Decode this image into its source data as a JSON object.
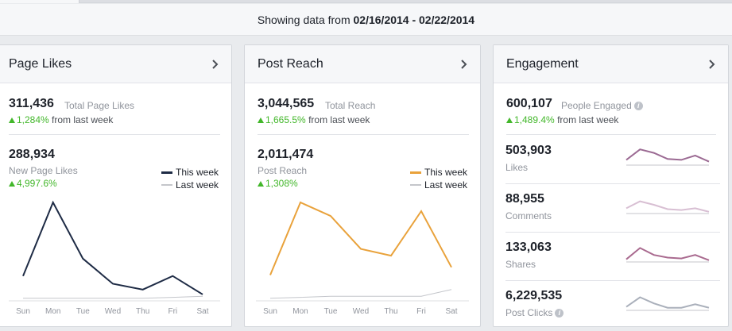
{
  "header": {
    "prefix": "Showing data from ",
    "range": "02/16/2014 - 02/22/2014"
  },
  "cards": {
    "likes": {
      "title": "Page Likes",
      "total_value": "311,436",
      "total_label": "Total Page Likes",
      "total_change": "1,284%",
      "total_change_suffix": "from last week",
      "sub_value": "288,934",
      "sub_label": "New Page Likes",
      "sub_change": "4,997.6%",
      "legend_this": "This week",
      "legend_last": "Last week"
    },
    "reach": {
      "title": "Post Reach",
      "total_value": "3,044,565",
      "total_label": "Total Reach",
      "total_change": "1,665.5%",
      "total_change_suffix": "from last week",
      "sub_value": "2,011,474",
      "sub_label": "Post Reach",
      "sub_change": "1,308%",
      "legend_this": "This week",
      "legend_last": "Last week"
    },
    "engagement": {
      "title": "Engagement",
      "total_value": "600,107",
      "total_label": "People Engaged",
      "total_change": "1,489.4%",
      "total_change_suffix": "from last week",
      "rows": [
        {
          "value": "503,903",
          "label": "Likes"
        },
        {
          "value": "88,955",
          "label": "Comments"
        },
        {
          "value": "133,063",
          "label": "Shares"
        },
        {
          "value": "6,229,535",
          "label": "Post Clicks"
        }
      ]
    }
  },
  "colors": {
    "likes_line": "#1e2b45",
    "reach_line": "#e9a23b",
    "last_week": "#c4c6cb",
    "spark_likes": "#9b6a93",
    "spark_comments": "#d8bfd3",
    "spark_shares": "#a96a8f",
    "spark_clicks": "#aab0bb"
  },
  "chart_data": [
    {
      "type": "line",
      "title": "Page Likes",
      "categories": [
        "Sun",
        "Mon",
        "Tue",
        "Wed",
        "Thu",
        "Fri",
        "Sat"
      ],
      "series": [
        {
          "name": "This week",
          "values": [
            24,
            100,
            42,
            16,
            10,
            24,
            5
          ]
        },
        {
          "name": "Last week",
          "values": [
            1,
            1,
            1,
            1,
            1,
            2,
            3
          ]
        }
      ],
      "ylim": [
        0,
        100
      ],
      "grid": false
    },
    {
      "type": "line",
      "title": "Post Reach",
      "categories": [
        "Sun",
        "Mon",
        "Tue",
        "Wed",
        "Thu",
        "Fri",
        "Sat"
      ],
      "series": [
        {
          "name": "This week",
          "values": [
            25,
            100,
            86,
            52,
            45,
            91,
            33
          ]
        },
        {
          "name": "Last week",
          "values": [
            1,
            2,
            3,
            3,
            3,
            3,
            10
          ]
        }
      ],
      "ylim": [
        0,
        100
      ],
      "grid": false
    },
    {
      "type": "line",
      "title": "Likes",
      "categories": [
        "Sun",
        "Mon",
        "Tue",
        "Wed",
        "Thu",
        "Fri",
        "Sat"
      ],
      "series": [
        {
          "name": "This week",
          "values": [
            30,
            90,
            70,
            35,
            30,
            55,
            20
          ]
        },
        {
          "name": "Last week",
          "values": [
            0,
            0,
            0,
            0,
            0,
            0,
            0
          ]
        }
      ]
    },
    {
      "type": "line",
      "title": "Comments",
      "categories": [
        "Sun",
        "Mon",
        "Tue",
        "Wed",
        "Thu",
        "Fri",
        "Sat"
      ],
      "series": [
        {
          "name": "This week",
          "values": [
            30,
            70,
            50,
            25,
            20,
            30,
            10
          ]
        },
        {
          "name": "Last week",
          "values": [
            0,
            0,
            0,
            0,
            0,
            0,
            0
          ]
        }
      ]
    },
    {
      "type": "line",
      "title": "Shares",
      "categories": [
        "Sun",
        "Mon",
        "Tue",
        "Wed",
        "Thu",
        "Fri",
        "Sat"
      ],
      "series": [
        {
          "name": "This week",
          "values": [
            15,
            80,
            40,
            25,
            20,
            40,
            10
          ]
        },
        {
          "name": "Last week",
          "values": [
            0,
            0,
            0,
            0,
            0,
            0,
            0
          ]
        }
      ]
    },
    {
      "type": "line",
      "title": "Post Clicks",
      "categories": [
        "Sun",
        "Mon",
        "Tue",
        "Wed",
        "Thu",
        "Fri",
        "Sat"
      ],
      "series": [
        {
          "name": "This week",
          "values": [
            20,
            75,
            40,
            15,
            15,
            35,
            15
          ]
        },
        {
          "name": "Last week",
          "values": [
            0,
            0,
            0,
            0,
            0,
            0,
            0
          ]
        }
      ]
    }
  ]
}
